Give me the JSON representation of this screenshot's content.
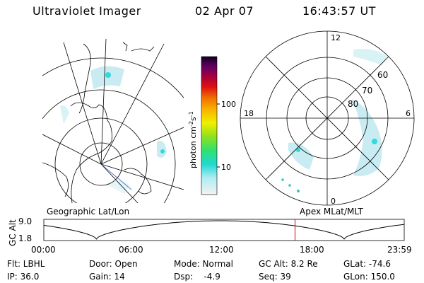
{
  "header": {
    "title": "Ultraviolet Imager",
    "date": "02 Apr 07",
    "time": "16:43:57 UT"
  },
  "left_panel": {
    "caption": "Geographic Lat/Lon"
  },
  "right_panel": {
    "caption": "Apex MLat/MLT",
    "mlt_labels": {
      "top": "12",
      "bottom": "0",
      "left": "18",
      "right": "6"
    },
    "lat_labels": [
      "60",
      "70",
      "80"
    ]
  },
  "colorbar": {
    "label_unit": "photon cm",
    "label_sup1": "-2",
    "label_s": "s",
    "label_sup2": "-1",
    "ticks": [
      "100",
      "10"
    ]
  },
  "timeline": {
    "ylabel": "GC Alt",
    "yticks": [
      "9.0",
      "1.8"
    ],
    "xticks": [
      "00:00",
      "06:00",
      "12:00",
      "18:00",
      "23:59"
    ],
    "current_marker_hour": 16.73,
    "current_marker_color": "#cc0000"
  },
  "info": {
    "filter": "Flt: LBHL",
    "ip": "IP: 36.0",
    "door": "Door: Open",
    "gain": "Gain: 14",
    "mode": "Mode: Normal",
    "dsp": "Dsp:    -4.9",
    "gc_alt": "GC Alt: 8.2 Re",
    "seq": "Seq: 39",
    "glat": "GLat: -74.6",
    "glon": "GLon: 150.0"
  }
}
